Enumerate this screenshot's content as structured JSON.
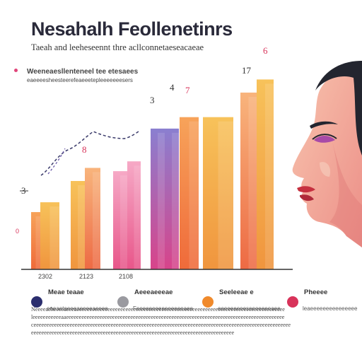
{
  "title": "Nesahalh Feollenetinrs",
  "subtitle": "Taeah and leeheseennt thre acllconnetaeseacaeae",
  "note": {
    "heading": "Weeneaesllenteneel tee etesaees",
    "sub": "eaeeeesheesteerefeaeeetepleeeeeeesers"
  },
  "legend": [
    {
      "name": "Meae teaae",
      "desc": "eneaeteeeeaeeeeaeeee",
      "color": "#2b2e6e"
    },
    {
      "name": "Aeeeaeeeae",
      "desc": "Feeeeeeeeeeeeeeeaee",
      "color": "#9a9aa0"
    },
    {
      "name": "Seeleeae e",
      "desc": "eeeeeeeeeseeeeeeeaee",
      "color": "#f08a2c"
    },
    {
      "name": "Pheeee",
      "desc": "leaeeeeeeeeeeeeeee",
      "color": "#d8335a"
    }
  ],
  "footer": [
    "Neeeeaeheeeeaeeeaeeeeeeeeeeeeeeeeeeeeeeeeeeeeeeeeeeeeeeeeeeeeeeeeeeeeeeeeeeeeeeeeeeeeeeeeeeeeeeeee",
    "leeeeeeeeeeeaaeeeeeeeeeeeeeeeeeeeeeeeeeeeeeeeeeeeeeeeeeeeeeeeeeeeeeeeeeeeeeeeeeeeeeeeeeeeeeeeeeeeee",
    "ceeeeeeeeeeeeeeeeeeeeeeeeeeeeeeeeeeeeeeeeeeeeeeeeeeeeeeeeeeeeeeeeeeeeeeeeeeeeeeeeeeeeeeeeeeeeeeeeeeee",
    "eeeeeeeeeeeeeeeeeeeeeeeeeeeeeeeeeeeeeeeeeeeeeeeeeeeeeeeeeeeeeeeeeeeeeeeeeeeeeee"
  ],
  "chart_data": {
    "type": "bar",
    "categories": [
      "2302",
      "2123",
      "2108",
      "",
      ""
    ],
    "y_tick_labels": [
      "0"
    ],
    "series": [
      {
        "name": "Meae teaae",
        "values": [
          35,
          58,
          60,
          86,
          91
        ],
        "color": "#f0914a"
      },
      {
        "name": "Aeeeaeeeae",
        "values": [
          41,
          54,
          64,
          93,
          102
        ],
        "color": "#f3b24f"
      },
      {
        "name": "Seeleeae e",
        "values": [
          19,
          54,
          66,
          88,
          93
        ],
        "color": "#e85a8a"
      },
      {
        "name": "Pheeee",
        "values": [
          30,
          62,
          78,
          111,
          120
        ],
        "color": "#f6a26a"
      }
    ],
    "data_labels": [
      "3",
      "8",
      "3",
      "4",
      "7",
      "17",
      "6"
    ],
    "ylim": [
      0,
      130
    ],
    "grid": false,
    "legend": "bottom"
  },
  "colors": {
    "skin": "#f5b8a2",
    "hair": "#23252f",
    "lips": "#c6303f"
  }
}
